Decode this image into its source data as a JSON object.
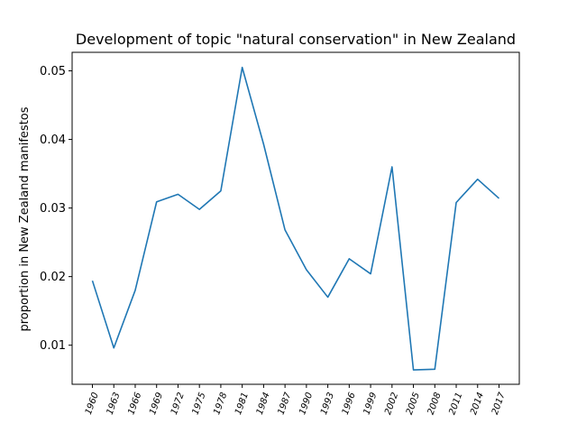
{
  "chart_data": {
    "type": "line",
    "title": "Development of topic \"natural conservation\" in New Zealand",
    "xlabel": "",
    "ylabel": "proportion in New Zealand manifestos",
    "categories": [
      "1960",
      "1963",
      "1966",
      "1969",
      "1972",
      "1975",
      "1978",
      "1981",
      "1984",
      "1987",
      "1990",
      "1993",
      "1996",
      "1999",
      "2002",
      "2005",
      "2008",
      "2011",
      "2014",
      "2017"
    ],
    "series": [
      {
        "values": [
          0.0194,
          0.0096,
          0.018,
          0.0309,
          0.032,
          0.0298,
          0.0325,
          0.0505,
          0.0393,
          0.0268,
          0.021,
          0.017,
          0.0226,
          0.0204,
          0.036,
          0.0064,
          0.0065,
          0.0308,
          0.0342,
          0.0314
        ],
        "color": "#1f77b4"
      }
    ],
    "ylim": [
      0.0043,
      0.0527
    ],
    "yticks": [
      0.01,
      0.02,
      0.03,
      0.04,
      0.05
    ],
    "ytick_labels": [
      "0.01",
      "0.02",
      "0.03",
      "0.04",
      "0.05"
    ],
    "grid": false,
    "legend": "none"
  }
}
